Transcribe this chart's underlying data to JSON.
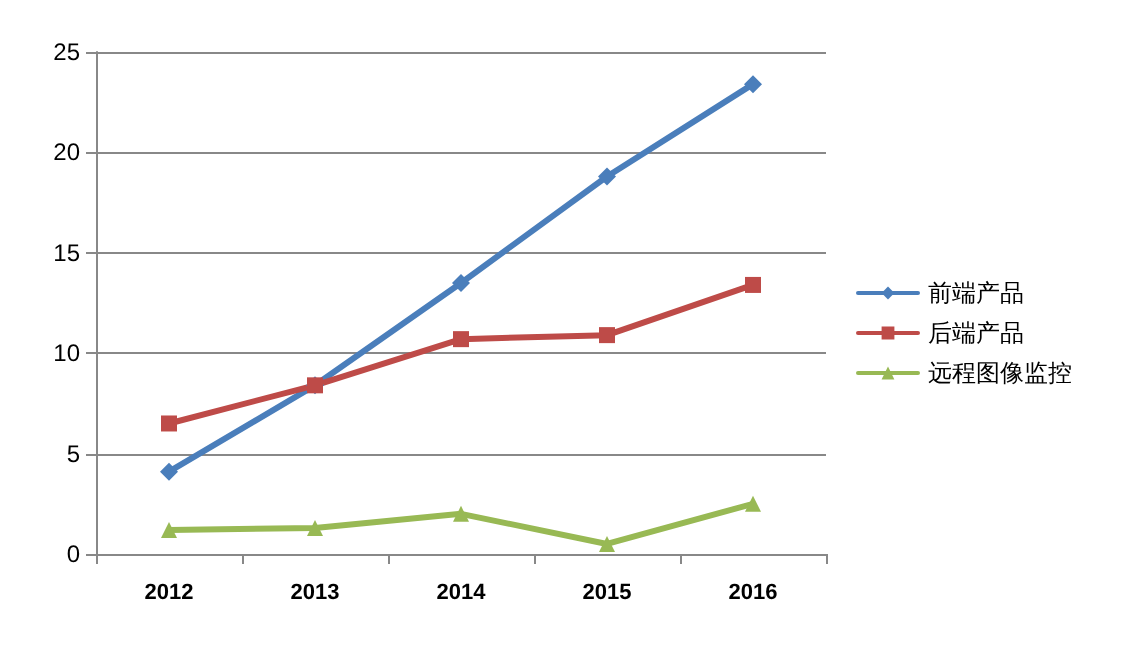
{
  "chart_data": {
    "type": "line",
    "categories": [
      "2012",
      "2013",
      "2014",
      "2015",
      "2016"
    ],
    "series": [
      {
        "name": "前端产品",
        "color": "#4a7ebb",
        "marker": "diamond",
        "values": [
          4.1,
          8.4,
          13.5,
          18.8,
          23.4
        ]
      },
      {
        "name": "后端产品",
        "color": "#be4b48",
        "marker": "square",
        "values": [
          6.5,
          8.4,
          10.7,
          10.9,
          13.4
        ]
      },
      {
        "name": "远程图像监控",
        "color": "#98b954",
        "marker": "triangle",
        "values": [
          1.2,
          1.3,
          2.0,
          0.5,
          2.5
        ]
      }
    ],
    "ylim": [
      0,
      25
    ],
    "yticks": [
      0,
      5,
      10,
      15,
      20,
      25
    ],
    "grid": "y",
    "legend": "right",
    "line_style": "solid"
  }
}
